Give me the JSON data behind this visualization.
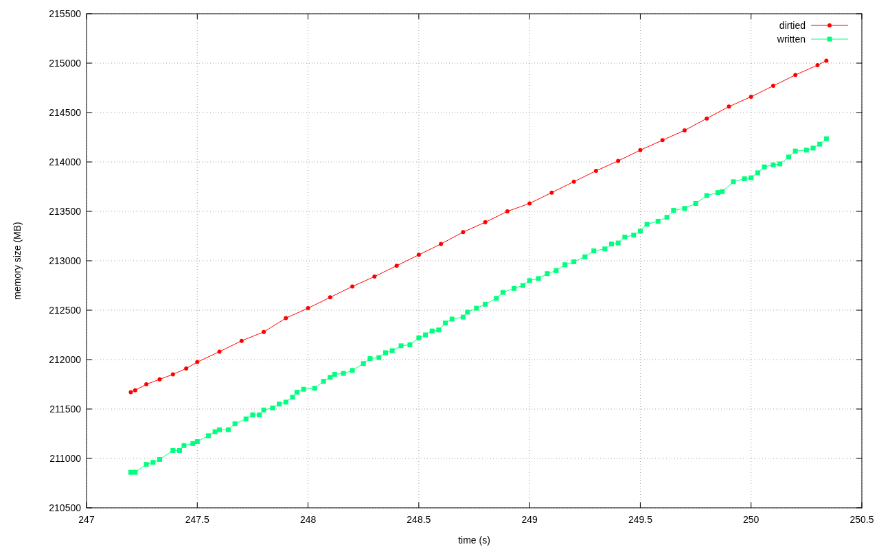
{
  "chart_data": {
    "type": "line",
    "xlabel": "time (s)",
    "ylabel": "memory size (MB)",
    "xlim": [
      247,
      250.5
    ],
    "xticks": [
      247,
      247.5,
      248,
      248.5,
      249,
      249.5,
      250,
      250.5
    ],
    "ylim": [
      210500,
      215500
    ],
    "yticks": [
      210500,
      211000,
      211500,
      212000,
      212500,
      213000,
      213500,
      214000,
      214500,
      215000,
      215500
    ],
    "grid": true,
    "legend": "top right",
    "series": [
      {
        "name": "dirtied",
        "color": "#ff0000",
        "marker": "circle",
        "x": [
          247.2,
          247.22,
          247.27,
          247.33,
          247.39,
          247.45,
          247.5,
          247.6,
          247.7,
          247.8,
          247.9,
          248.0,
          248.1,
          248.2,
          248.3,
          248.4,
          248.5,
          248.6,
          248.7,
          248.8,
          248.9,
          249.0,
          249.1,
          249.2,
          249.3,
          249.4,
          249.5,
          249.6,
          249.7,
          249.8,
          249.9,
          250.0,
          250.1,
          250.2,
          250.3,
          250.34
        ],
        "values": [
          211670,
          211690,
          211750,
          211800,
          211850,
          211910,
          211975,
          212080,
          212190,
          212280,
          212420,
          212520,
          212630,
          212740,
          212840,
          212950,
          213060,
          213170,
          213290,
          213390,
          213500,
          213580,
          213690,
          213800,
          213910,
          214010,
          214120,
          214220,
          214320,
          214440,
          214560,
          214660,
          214770,
          214880,
          214980,
          215025
        ]
      },
      {
        "name": "written",
        "color": "#00ff7f",
        "marker": "square",
        "x": [
          247.2,
          247.22,
          247.27,
          247.3,
          247.33,
          247.39,
          247.42,
          247.44,
          247.48,
          247.5,
          247.55,
          247.58,
          247.6,
          247.64,
          247.67,
          247.72,
          247.75,
          247.78,
          247.8,
          247.84,
          247.87,
          247.9,
          247.93,
          247.95,
          247.98,
          248.03,
          248.07,
          248.1,
          248.12,
          248.16,
          248.2,
          248.25,
          248.28,
          248.32,
          248.35,
          248.38,
          248.42,
          248.46,
          248.5,
          248.53,
          248.56,
          248.59,
          248.62,
          248.65,
          248.7,
          248.72,
          248.76,
          248.8,
          248.85,
          248.88,
          248.93,
          248.97,
          249.0,
          249.04,
          249.08,
          249.12,
          249.16,
          249.2,
          249.25,
          249.29,
          249.34,
          249.37,
          249.4,
          249.43,
          249.47,
          249.5,
          249.53,
          249.58,
          249.62,
          249.65,
          249.7,
          249.75,
          249.8,
          249.85,
          249.87,
          249.92,
          249.97,
          250.0,
          250.03,
          250.06,
          250.1,
          250.13,
          250.17,
          250.2,
          250.25,
          250.28,
          250.31,
          250.34
        ],
        "values": [
          210860,
          210860,
          210940,
          210960,
          210990,
          211080,
          211080,
          211130,
          211150,
          211170,
          211230,
          211270,
          211290,
          211290,
          211350,
          211400,
          211440,
          211440,
          211490,
          211510,
          211550,
          211570,
          211620,
          211670,
          211700,
          211710,
          211780,
          211820,
          211850,
          211860,
          211890,
          211960,
          212010,
          212020,
          212070,
          212090,
          212140,
          212150,
          212220,
          212250,
          212290,
          212300,
          212370,
          212410,
          212430,
          212480,
          212520,
          212560,
          212620,
          212680,
          212720,
          212750,
          212800,
          212820,
          212870,
          212900,
          212960,
          212990,
          213040,
          213100,
          213120,
          213170,
          213180,
          213240,
          213260,
          213300,
          213370,
          213400,
          213440,
          213510,
          213530,
          213580,
          213660,
          213690,
          213700,
          213800,
          213830,
          213840,
          213890,
          213950,
          213970,
          213980,
          214050,
          214110,
          214120,
          214140,
          214180,
          214235
        ]
      }
    ]
  }
}
